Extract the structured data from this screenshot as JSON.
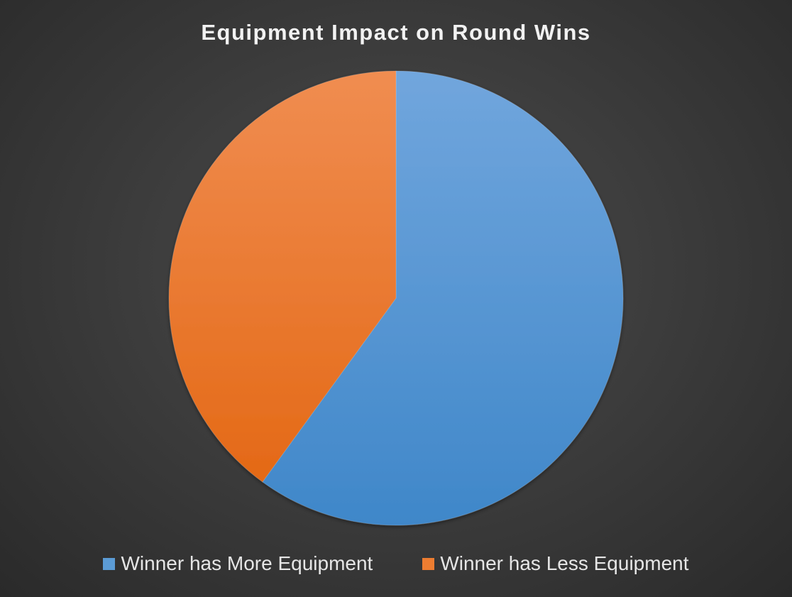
{
  "chart_data": {
    "type": "pie",
    "title": "Equipment Impact on Round Wins",
    "categories": [
      "Winner has More Equipment",
      "Winner has Less Equipment"
    ],
    "values": [
      60,
      40
    ],
    "colors": [
      "#5b9bd5",
      "#ed7d31"
    ],
    "legend_position": "bottom",
    "start_angle": "12 o'clock",
    "direction": "clockwise"
  }
}
